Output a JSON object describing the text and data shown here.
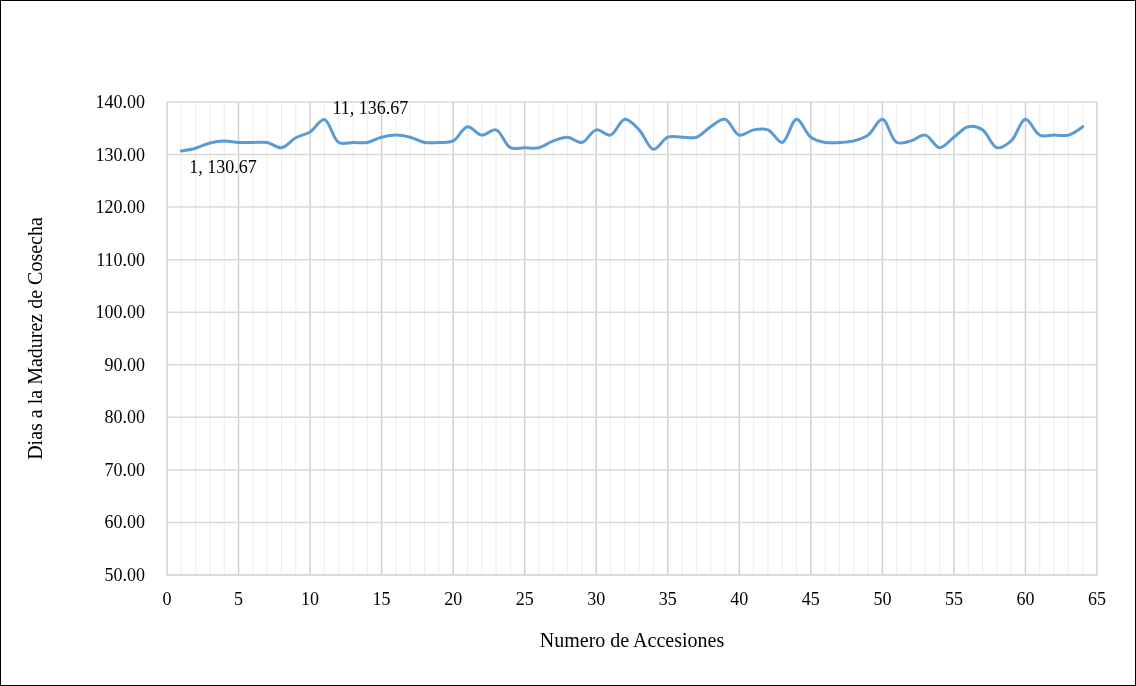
{
  "chart_data": {
    "type": "line",
    "xlabel": "Numero de Accesiones",
    "ylabel": "Dias a la Madurez de Cosecha",
    "x": [
      1,
      2,
      3,
      4,
      5,
      6,
      7,
      8,
      9,
      10,
      11,
      12,
      13,
      14,
      15,
      16,
      17,
      18,
      19,
      20,
      21,
      22,
      23,
      24,
      25,
      26,
      27,
      28,
      29,
      30,
      31,
      32,
      33,
      34,
      35,
      36,
      37,
      38,
      39,
      40,
      41,
      42,
      43,
      44,
      45,
      46,
      47,
      48,
      49,
      50,
      51,
      52,
      53,
      54,
      55,
      56,
      57,
      58,
      59,
      60,
      61,
      62,
      63,
      64
    ],
    "series": [
      {
        "color": "#5b9bd5",
        "values": [
          130.67,
          131.2,
          132.2,
          132.6,
          132.3,
          132.3,
          132.3,
          131.3,
          133.2,
          134.3,
          136.67,
          132.3,
          132.3,
          132.3,
          133.3,
          133.7,
          133.3,
          132.3,
          132.3,
          132.6,
          135.3,
          133.7,
          134.7,
          131.3,
          131.3,
          131.3,
          132.6,
          133.3,
          132.3,
          134.7,
          133.7,
          136.7,
          134.7,
          131.0,
          133.3,
          133.3,
          133.3,
          135.3,
          136.7,
          133.7,
          134.7,
          134.7,
          132.3,
          136.7,
          133.3,
          132.3,
          132.3,
          132.6,
          133.7,
          136.7,
          132.3,
          132.6,
          133.7,
          131.3,
          133.3,
          135.3,
          134.7,
          131.3,
          132.6,
          136.7,
          133.7,
          133.7,
          133.7,
          135.3
        ],
        "value_labels": [
          "1, 130.67",
          null,
          null,
          null,
          null,
          null,
          null,
          null,
          null,
          null,
          "11, 136.67",
          null,
          null,
          null,
          null,
          null,
          null,
          null,
          null,
          null,
          null,
          null,
          null,
          null,
          null,
          null,
          null,
          null,
          null,
          null,
          null,
          null,
          null,
          null,
          null,
          null,
          null,
          null,
          null,
          null,
          null,
          null,
          null,
          null,
          null,
          null,
          null,
          null,
          null,
          null,
          null,
          null,
          null,
          null,
          null,
          null,
          null,
          null,
          null,
          null,
          null,
          null,
          null,
          null
        ]
      }
    ],
    "xlim": [
      0,
      65
    ],
    "xticks": [
      0,
      {
        "value": 1,
        "label": null
      },
      {
        "value": 2,
        "label": null
      },
      {
        "value": 3,
        "label": null
      },
      {
        "value": 4,
        "label": null
      },
      5,
      {
        "value": 6,
        "label": null
      },
      {
        "value": 7,
        "label": null
      },
      {
        "value": 8,
        "label": null
      },
      {
        "value": 9,
        "label": null
      },
      10,
      {
        "value": 11,
        "label": null
      },
      {
        "value": 12,
        "label": null
      },
      {
        "value": 13,
        "label": null
      },
      {
        "value": 14,
        "label": null
      },
      15,
      {
        "value": 16,
        "label": null
      },
      {
        "value": 17,
        "label": null
      },
      {
        "value": 18,
        "label": null
      },
      {
        "value": 19,
        "label": null
      },
      20,
      {
        "value": 21,
        "label": null
      },
      {
        "value": 22,
        "label": null
      },
      {
        "value": 23,
        "label": null
      },
      {
        "value": 24,
        "label": null
      },
      25,
      {
        "value": 26,
        "label": null
      },
      {
        "value": 27,
        "label": null
      },
      {
        "value": 28,
        "label": null
      },
      {
        "value": 29,
        "label": null
      },
      30,
      {
        "value": 31,
        "label": null
      },
      {
        "value": 32,
        "label": null
      },
      {
        "value": 33,
        "label": null
      },
      {
        "value": 34,
        "label": null
      },
      35,
      {
        "value": 36,
        "label": null
      },
      {
        "value": 37,
        "label": null
      },
      {
        "value": 38,
        "label": null
      },
      {
        "value": 39,
        "label": null
      },
      40,
      {
        "value": 41,
        "label": null
      },
      {
        "value": 42,
        "label": null
      },
      {
        "value": 43,
        "label": null
      },
      {
        "value": 44,
        "label": null
      },
      45,
      {
        "value": 46,
        "label": null
      },
      {
        "value": 47,
        "label": null
      },
      {
        "value": 48,
        "label": null
      },
      {
        "value": 49,
        "label": null
      },
      50,
      {
        "value": 51,
        "label": null
      },
      {
        "value": 52,
        "label": null
      },
      {
        "value": 53,
        "label": null
      },
      {
        "value": 54,
        "label": null
      },
      55,
      {
        "value": 56,
        "label": null
      },
      {
        "value": 57,
        "label": null
      },
      {
        "value": 58,
        "label": null
      },
      {
        "value": 59,
        "label": null
      },
      60,
      {
        "value": 61,
        "label": null
      },
      {
        "value": 62,
        "label": null
      },
      {
        "value": 63,
        "label": null
      },
      {
        "value": 64,
        "label": null
      },
      65
    ],
    "ylim": [
      50,
      140
    ],
    "yticks": [
      {
        "value": 50,
        "label": "50.00"
      },
      {
        "value": 60,
        "label": "60.00"
      },
      {
        "value": 70,
        "label": "70.00"
      },
      {
        "value": 80,
        "label": "80.00"
      },
      {
        "value": 90,
        "label": "90.00"
      },
      {
        "value": 100,
        "label": "100.00"
      },
      {
        "value": 110,
        "label": "110.00"
      },
      {
        "value": 120,
        "label": "120.00"
      },
      {
        "value": 130,
        "label": "130.00"
      },
      {
        "value": 140,
        "label": "140.00"
      }
    ],
    "grid": true,
    "marker": "none",
    "line_style": "solid"
  }
}
